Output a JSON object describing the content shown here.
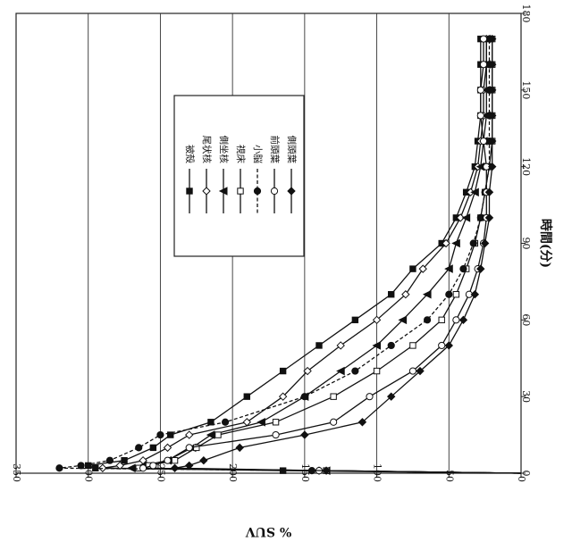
{
  "chart_data": {
    "type": "line",
    "title": "",
    "xlabel": "時間(分)",
    "ylabel": "% SUV",
    "xlim": [
      0,
      180
    ],
    "ylim": [
      0,
      350
    ],
    "x_ticks": [
      0,
      30,
      60,
      90,
      120,
      150,
      180
    ],
    "y_ticks": [
      0,
      50,
      100,
      150,
      200,
      250,
      300,
      350
    ],
    "grid": "horizontal",
    "legend_position": "top-right",
    "orientation": "rotated-90-clockwise",
    "series": [
      {
        "name": "被殻",
        "marker": "filled-square",
        "dash": "solid",
        "x": [
          0,
          1,
          2,
          3,
          5,
          10,
          15,
          20,
          30,
          40,
          50,
          60,
          70,
          80,
          90,
          100,
          110,
          120,
          130,
          140,
          150,
          160,
          170
        ],
        "y": [
          0,
          165,
          295,
          300,
          275,
          255,
          243,
          215,
          190,
          165,
          140,
          115,
          90,
          75,
          55,
          45,
          38,
          32,
          30,
          28,
          28,
          28,
          28
        ]
      },
      {
        "name": "尾状核",
        "marker": "open-diamond",
        "dash": "solid",
        "x": [
          0,
          1,
          2,
          3,
          5,
          10,
          15,
          20,
          30,
          40,
          50,
          60,
          70,
          80,
          90,
          100,
          110,
          120,
          130,
          140,
          150,
          160,
          170
        ],
        "y": [
          0,
          140,
          290,
          278,
          262,
          245,
          230,
          190,
          165,
          148,
          125,
          100,
          80,
          68,
          52,
          42,
          35,
          30,
          28,
          26,
          26,
          24,
          24
        ]
      },
      {
        "name": "側坐核",
        "marker": "filled-triangle",
        "dash": "solid",
        "x": [
          0,
          1,
          2,
          3,
          5,
          10,
          15,
          20,
          30,
          40,
          50,
          60,
          70,
          80,
          90,
          100,
          110,
          120,
          130,
          140,
          150,
          160,
          170
        ],
        "y": [
          0,
          135,
          270,
          262,
          245,
          228,
          215,
          180,
          150,
          125,
          100,
          82,
          65,
          50,
          45,
          38,
          32,
          28,
          26,
          24,
          24,
          24,
          24
        ]
      },
      {
        "name": "視床",
        "marker": "open-square",
        "dash": "solid",
        "x": [
          0,
          1,
          2,
          3,
          5,
          10,
          15,
          20,
          30,
          40,
          50,
          60,
          70,
          80,
          90,
          100,
          110,
          120,
          130,
          140,
          150,
          160,
          170
        ],
        "y": [
          0,
          135,
          265,
          258,
          240,
          225,
          210,
          170,
          130,
          100,
          75,
          55,
          45,
          38,
          32,
          28,
          25,
          22,
          20,
          20,
          20,
          20,
          20
        ]
      },
      {
        "name": "小脳",
        "marker": "filled-circle",
        "dash": "dashed",
        "x": [
          0,
          1,
          2,
          3,
          5,
          10,
          15,
          20,
          30,
          40,
          50,
          60,
          70,
          80,
          90,
          100,
          110,
          120,
          130,
          140,
          150,
          160,
          170
        ],
        "y": [
          0,
          145,
          320,
          305,
          285,
          265,
          250,
          205,
          150,
          115,
          90,
          65,
          50,
          40,
          33,
          28,
          25,
          22,
          22,
          22,
          22,
          22,
          22
        ]
      },
      {
        "name": "前頭葉",
        "marker": "open-circle",
        "dash": "solid",
        "x": [
          0,
          1,
          2,
          3,
          5,
          10,
          15,
          20,
          30,
          40,
          50,
          60,
          70,
          80,
          90,
          100,
          110,
          120,
          130,
          140,
          150,
          160,
          170
        ],
        "y": [
          0,
          140,
          262,
          255,
          245,
          230,
          170,
          130,
          105,
          75,
          55,
          45,
          36,
          30,
          26,
          24,
          24,
          24,
          26,
          28,
          28,
          26,
          26
        ]
      },
      {
        "name": "側頭葉",
        "marker": "filled-diamond",
        "dash": "solid",
        "x": [
          0,
          1,
          2,
          3,
          5,
          10,
          15,
          20,
          30,
          40,
          50,
          60,
          70,
          80,
          90,
          100,
          110,
          120,
          130,
          140,
          150,
          160,
          170
        ],
        "y": [
          0,
          135,
          240,
          230,
          220,
          195,
          150,
          110,
          90,
          70,
          50,
          40,
          32,
          28,
          25,
          22,
          22,
          20,
          20,
          20,
          20,
          20,
          20
        ]
      }
    ]
  }
}
